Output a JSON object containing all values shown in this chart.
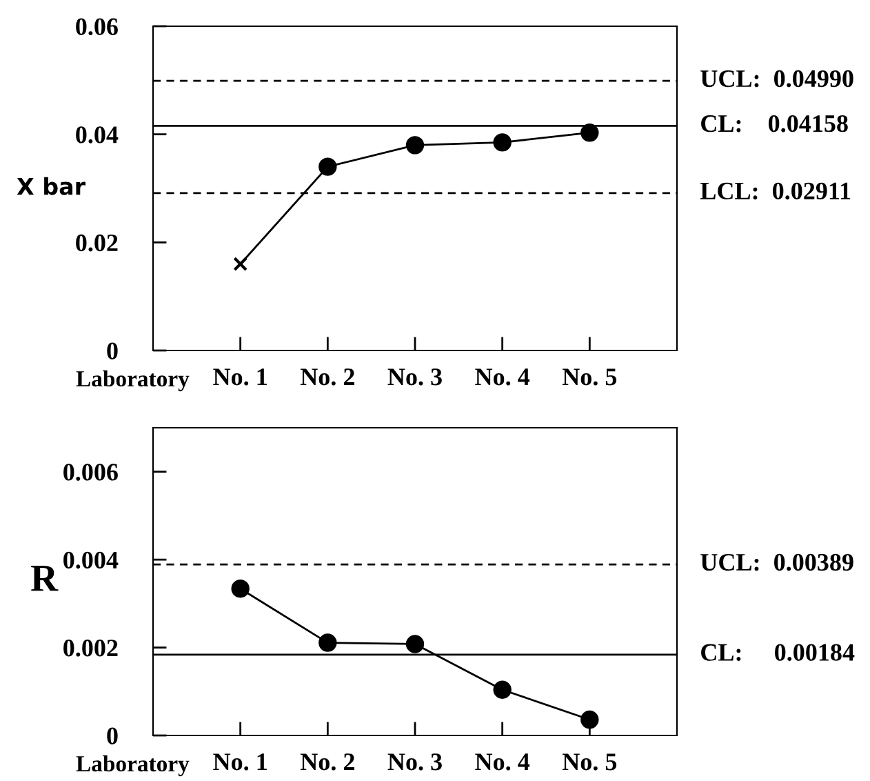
{
  "chart_data": [
    {
      "type": "line",
      "ylabel": "X bar",
      "xlabel": "Laboratory",
      "categories": [
        "No. 1",
        "No. 2",
        "No. 3",
        "No. 4",
        "No. 5"
      ],
      "series": [
        {
          "color": "#000000",
          "marker": "none",
          "values": [
            0.016,
            0.034,
            0.038,
            0.0385,
            0.0403
          ]
        },
        {
          "type": "scatter",
          "color": "#000000",
          "marker": "circle",
          "values": [
            null,
            0.034,
            0.038,
            0.0385,
            0.0403
          ]
        },
        {
          "type": "scatter",
          "color": "#000000",
          "marker": "cross",
          "values": [
            0.016,
            null,
            null,
            null,
            null
          ]
        }
      ],
      "ylim": [
        0,
        0.06
      ],
      "yticks": [
        0,
        0.02,
        0.04,
        0.06
      ],
      "grid": false,
      "legend": false,
      "ref_lines": [
        {
          "axis": "y",
          "value": 0.0499,
          "label": "UCL:  0.04990",
          "line_style": "dashed",
          "color": "#000000"
        },
        {
          "axis": "y",
          "value": 0.04158,
          "label": "CL:    0.04158",
          "line_style": "solid",
          "color": "#000000"
        },
        {
          "axis": "y",
          "value": 0.02911,
          "label": "LCL:  0.02911",
          "line_style": "dashed",
          "color": "#000000"
        }
      ]
    },
    {
      "type": "line",
      "ylabel": "R",
      "xlabel": "Laboratory",
      "categories": [
        "No. 1",
        "No. 2",
        "No. 3",
        "No. 4",
        "No. 5"
      ],
      "series": [
        {
          "color": "#000000",
          "marker": "circle",
          "values": [
            0.00334,
            0.00211,
            0.00208,
            0.00104,
            0.00036
          ]
        }
      ],
      "ylim": [
        0,
        0.007
      ],
      "yticks": [
        0,
        0.002,
        0.004,
        0.006
      ],
      "grid": false,
      "legend": false,
      "ref_lines": [
        {
          "axis": "y",
          "value": 0.00389,
          "label": "UCL:  0.00389",
          "line_style": "dashed",
          "color": "#000000"
        },
        {
          "axis": "y",
          "value": 0.00184,
          "label": "CL:     0.00184",
          "line_style": "solid",
          "color": "#000000"
        }
      ]
    }
  ]
}
